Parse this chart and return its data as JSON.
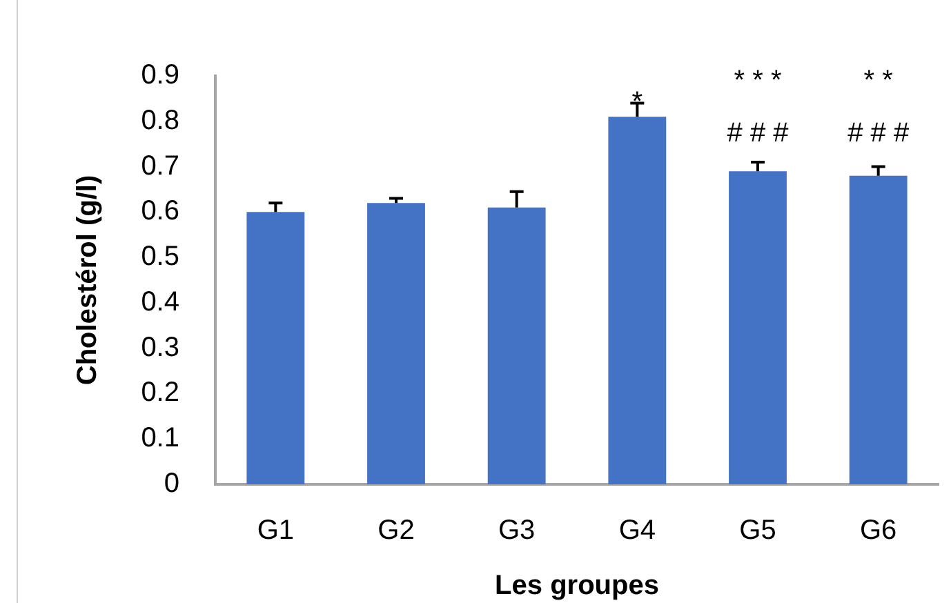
{
  "chart_data": {
    "type": "bar",
    "xlabel": "Les groupes",
    "ylabel": "Cholestérol (g/l)",
    "categories": [
      "G1",
      "G2",
      "G3",
      "G4",
      "G5",
      "G6"
    ],
    "values": [
      0.6,
      0.62,
      0.61,
      0.81,
      0.69,
      0.68
    ],
    "color": "#4472c4",
    "errors": [
      [
        0.6,
        0.62
      ],
      [
        0.62,
        0.63
      ],
      [
        0.61,
        0.645
      ],
      [
        0.81,
        0.84
      ],
      [
        0.69,
        0.71
      ],
      [
        0.68,
        0.7
      ]
    ],
    "ylim": [
      0,
      0.9
    ],
    "yticks": [
      0,
      0.1,
      0.2,
      0.3,
      0.4,
      0.5,
      0.6,
      0.7,
      0.8,
      0.9
    ],
    "annotations": [
      {
        "text": "*",
        "x": "G4",
        "y": 0.84
      },
      "* * *",
      "# # #",
      "* *",
      "# # #"
    ]
  }
}
